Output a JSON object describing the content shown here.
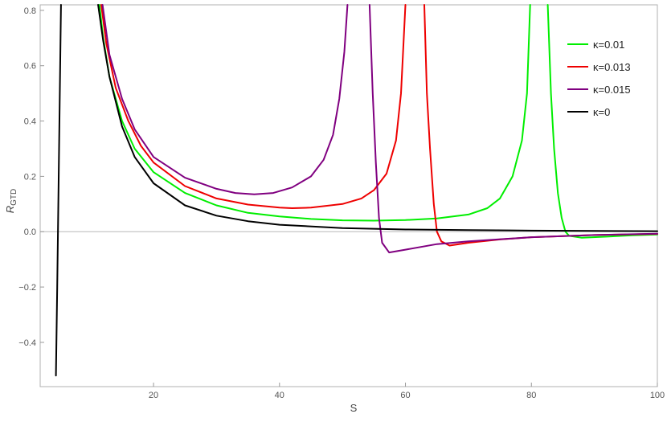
{
  "chart_data": {
    "type": "line",
    "title": "",
    "xlabel": "S",
    "ylabel_main": "R",
    "ylabel_sub": "GTD",
    "xlim": [
      2,
      100
    ],
    "ylim": [
      -0.56,
      0.82
    ],
    "xticks": [
      20,
      40,
      60,
      80,
      100
    ],
    "yticks": [
      -0.4,
      -0.2,
      0.0,
      0.2,
      0.4,
      0.6,
      0.8
    ],
    "xtick_labels": [
      "20",
      "40",
      "60",
      "80",
      "100"
    ],
    "ytick_labels": [
      "−0.4",
      "−0.2",
      "0.0",
      "0.2",
      "0.4",
      "0.6",
      "0.8"
    ],
    "grid": false,
    "legend_position": "top-right",
    "series": [
      {
        "name": "κ=0.01",
        "color": "#00ee00",
        "segments": [
          [
            [
              11.4,
              0.82
            ],
            [
              12,
              0.7
            ],
            [
              13,
              0.56
            ],
            [
              15,
              0.4
            ],
            [
              17,
              0.3
            ],
            [
              20,
              0.215
            ],
            [
              25,
              0.14
            ],
            [
              30,
              0.095
            ],
            [
              35,
              0.068
            ],
            [
              40,
              0.055
            ],
            [
              45,
              0.046
            ],
            [
              50,
              0.041
            ],
            [
              55,
              0.04
            ],
            [
              60,
              0.042
            ],
            [
              65,
              0.048
            ],
            [
              70,
              0.062
            ],
            [
              73,
              0.085
            ],
            [
              75,
              0.12
            ],
            [
              77,
              0.2
            ],
            [
              78.5,
              0.33
            ],
            [
              79.3,
              0.5
            ],
            [
              79.8,
              0.82
            ]
          ],
          [
            [
              82.6,
              0.82
            ],
            [
              83.1,
              0.5
            ],
            [
              83.6,
              0.3
            ],
            [
              84.2,
              0.14
            ],
            [
              84.8,
              0.05
            ],
            [
              85.4,
              0.0
            ],
            [
              86,
              -0.015
            ],
            [
              88,
              -0.022
            ],
            [
              92,
              -0.018
            ],
            [
              96,
              -0.013
            ],
            [
              100,
              -0.01
            ]
          ]
        ]
      },
      {
        "name": "κ=0.013",
        "color": "#ee0000",
        "segments": [
          [
            [
              11.7,
              0.82
            ],
            [
              12.5,
              0.68
            ],
            [
              14,
              0.52
            ],
            [
              16,
              0.4
            ],
            [
              18,
              0.31
            ],
            [
              20,
              0.25
            ],
            [
              25,
              0.165
            ],
            [
              30,
              0.12
            ],
            [
              35,
              0.098
            ],
            [
              40,
              0.087
            ],
            [
              42,
              0.085
            ],
            [
              45,
              0.087
            ],
            [
              50,
              0.1
            ],
            [
              53,
              0.12
            ],
            [
              55,
              0.15
            ],
            [
              57,
              0.21
            ],
            [
              58.5,
              0.33
            ],
            [
              59.3,
              0.5
            ],
            [
              60,
              0.82
            ]
          ],
          [
            [
              63,
              0.82
            ],
            [
              63.4,
              0.5
            ],
            [
              63.9,
              0.3
            ],
            [
              64.5,
              0.1
            ],
            [
              65,
              0.0
            ],
            [
              65.7,
              -0.035
            ],
            [
              67,
              -0.05
            ],
            [
              70,
              -0.04
            ],
            [
              75,
              -0.028
            ],
            [
              80,
              -0.02
            ],
            [
              90,
              -0.012
            ],
            [
              100,
              -0.008
            ]
          ]
        ]
      },
      {
        "name": "κ=0.015",
        "color": "#800080",
        "segments": [
          [
            [
              11.9,
              0.82
            ],
            [
              13,
              0.64
            ],
            [
              15,
              0.48
            ],
            [
              17,
              0.37
            ],
            [
              20,
              0.27
            ],
            [
              25,
              0.195
            ],
            [
              30,
              0.155
            ],
            [
              33,
              0.14
            ],
            [
              36,
              0.135
            ],
            [
              39,
              0.14
            ],
            [
              42,
              0.16
            ],
            [
              45,
              0.2
            ],
            [
              47,
              0.26
            ],
            [
              48.5,
              0.35
            ],
            [
              49.5,
              0.48
            ],
            [
              50.3,
              0.65
            ],
            [
              50.8,
              0.82
            ]
          ],
          [
            [
              54.3,
              0.82
            ],
            [
              54.8,
              0.5
            ],
            [
              55.3,
              0.25
            ],
            [
              55.8,
              0.05
            ],
            [
              56.3,
              -0.04
            ],
            [
              57.4,
              -0.075
            ],
            [
              60,
              -0.065
            ],
            [
              65,
              -0.045
            ],
            [
              70,
              -0.035
            ],
            [
              80,
              -0.02
            ],
            [
              90,
              -0.012
            ],
            [
              100,
              -0.007
            ]
          ]
        ]
      },
      {
        "name": "κ=0",
        "color": "#000000",
        "segments": [
          [
            [
              4.5,
              -0.52
            ],
            [
              4.7,
              -0.2
            ],
            [
              5.0,
              0.3
            ],
            [
              5.3,
              0.82
            ]
          ],
          [
            [
              11.2,
              0.82
            ],
            [
              12,
              0.69
            ],
            [
              13,
              0.56
            ],
            [
              15,
              0.38
            ],
            [
              17,
              0.27
            ],
            [
              20,
              0.175
            ],
            [
              25,
              0.095
            ],
            [
              30,
              0.058
            ],
            [
              35,
              0.038
            ],
            [
              40,
              0.025
            ],
            [
              50,
              0.013
            ],
            [
              60,
              0.008
            ],
            [
              70,
              0.006
            ],
            [
              80,
              0.004
            ],
            [
              90,
              0.003
            ],
            [
              100,
              0.002
            ]
          ]
        ]
      }
    ]
  }
}
